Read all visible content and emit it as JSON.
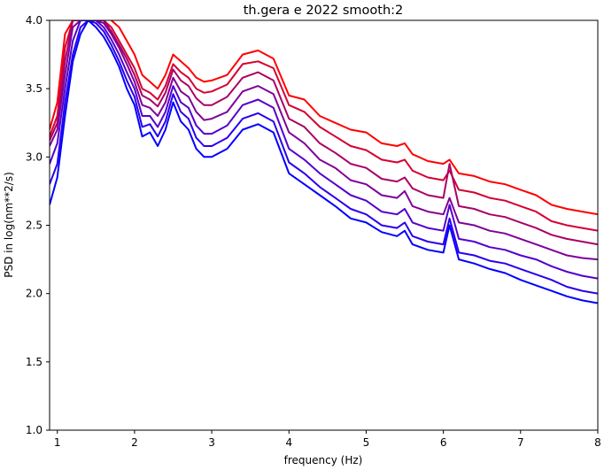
{
  "chart_data": {
    "type": "line",
    "title": "th.gera e 2022 smooth:2",
    "xlabel": "frequency (Hz)",
    "ylabel": "PSD in log(nm**2/s)",
    "xlim": [
      0.9,
      8
    ],
    "ylim": [
      1.0,
      4.0
    ],
    "xticks": [
      1,
      2,
      3,
      4,
      5,
      6,
      7,
      8
    ],
    "yticks": [
      1.0,
      1.5,
      2.0,
      2.5,
      3.0,
      3.5,
      4.0
    ],
    "x_tick_labels": [
      "1",
      "2",
      "3",
      "4",
      "5",
      "6",
      "7",
      "8"
    ],
    "y_tick_labels": [
      "1.0",
      "1.5",
      "2.0",
      "2.5",
      "3.0",
      "3.5",
      "4.0"
    ],
    "grid": false,
    "legend": "none",
    "series": [
      {
        "color": "#ff0000",
        "x": [
          0.9,
          1.0,
          1.1,
          1.2,
          1.3,
          1.4,
          1.5,
          1.6,
          1.7,
          1.8,
          1.9,
          2.0,
          2.1,
          2.2,
          2.3,
          2.4,
          2.5,
          2.6,
          2.7,
          2.8,
          2.9,
          3.0,
          3.2,
          3.4,
          3.6,
          3.8,
          4.0,
          4.2,
          4.4,
          4.6,
          4.8,
          5.0,
          5.2,
          5.4,
          5.5,
          5.6,
          5.8,
          6.0,
          6.08,
          6.2,
          6.4,
          6.6,
          6.8,
          7.0,
          7.2,
          7.4,
          7.6,
          7.8,
          8.0
        ],
        "y": [
          3.2,
          3.4,
          3.9,
          4.0,
          4.0,
          4.0,
          4.05,
          4.05,
          4.0,
          3.95,
          3.85,
          3.75,
          3.6,
          3.55,
          3.5,
          3.6,
          3.75,
          3.7,
          3.65,
          3.58,
          3.55,
          3.56,
          3.6,
          3.75,
          3.78,
          3.72,
          3.45,
          3.42,
          3.3,
          3.25,
          3.2,
          3.18,
          3.1,
          3.08,
          3.1,
          3.02,
          2.97,
          2.95,
          2.98,
          2.88,
          2.86,
          2.82,
          2.8,
          2.76,
          2.72,
          2.65,
          2.62,
          2.6,
          2.58
        ]
      },
      {
        "color": "#d40033",
        "x": [
          0.9,
          1.0,
          1.1,
          1.2,
          1.3,
          1.4,
          1.5,
          1.6,
          1.7,
          1.8,
          1.9,
          2.0,
          2.1,
          2.2,
          2.3,
          2.4,
          2.5,
          2.6,
          2.7,
          2.8,
          2.9,
          3.0,
          3.2,
          3.4,
          3.6,
          3.8,
          4.0,
          4.2,
          4.4,
          4.6,
          4.8,
          5.0,
          5.2,
          5.4,
          5.5,
          5.6,
          5.8,
          6.0,
          6.08,
          6.2,
          6.4,
          6.6,
          6.8,
          7.0,
          7.2,
          7.4,
          7.6,
          7.8,
          8.0
        ],
        "y": [
          3.15,
          3.3,
          3.8,
          4.0,
          4.0,
          4.0,
          4.0,
          4.0,
          3.95,
          3.85,
          3.75,
          3.65,
          3.5,
          3.47,
          3.42,
          3.52,
          3.68,
          3.62,
          3.58,
          3.5,
          3.47,
          3.48,
          3.53,
          3.68,
          3.7,
          3.65,
          3.38,
          3.33,
          3.22,
          3.15,
          3.08,
          3.05,
          2.98,
          2.96,
          2.98,
          2.9,
          2.85,
          2.83,
          2.9,
          2.76,
          2.74,
          2.7,
          2.68,
          2.64,
          2.6,
          2.53,
          2.5,
          2.48,
          2.46
        ]
      },
      {
        "color": "#aa0066",
        "x": [
          0.9,
          1.0,
          1.1,
          1.2,
          1.3,
          1.4,
          1.5,
          1.6,
          1.7,
          1.8,
          1.9,
          2.0,
          2.1,
          2.2,
          2.3,
          2.4,
          2.5,
          2.6,
          2.7,
          2.8,
          2.9,
          3.0,
          3.2,
          3.4,
          3.6,
          3.8,
          4.0,
          4.2,
          4.4,
          4.6,
          4.8,
          5.0,
          5.2,
          5.4,
          5.5,
          5.6,
          5.8,
          6.0,
          6.08,
          6.2,
          6.4,
          6.6,
          6.8,
          7.0,
          7.2,
          7.4,
          7.6,
          7.8,
          8.0
        ],
        "y": [
          3.12,
          3.25,
          3.7,
          4.0,
          4.0,
          4.0,
          4.0,
          4.0,
          3.92,
          3.82,
          3.72,
          3.6,
          3.45,
          3.42,
          3.37,
          3.47,
          3.64,
          3.56,
          3.52,
          3.43,
          3.38,
          3.38,
          3.44,
          3.58,
          3.62,
          3.56,
          3.28,
          3.22,
          3.1,
          3.03,
          2.95,
          2.92,
          2.84,
          2.82,
          2.85,
          2.77,
          2.72,
          2.7,
          2.95,
          2.64,
          2.62,
          2.58,
          2.56,
          2.52,
          2.48,
          2.43,
          2.4,
          2.38,
          2.36
        ]
      },
      {
        "color": "#7f0099",
        "x": [
          0.9,
          1.0,
          1.1,
          1.2,
          1.3,
          1.4,
          1.5,
          1.6,
          1.7,
          1.8,
          1.9,
          2.0,
          2.1,
          2.2,
          2.3,
          2.4,
          2.5,
          2.6,
          2.7,
          2.8,
          2.9,
          3.0,
          3.2,
          3.4,
          3.6,
          3.8,
          4.0,
          4.2,
          4.4,
          4.6,
          4.8,
          5.0,
          5.2,
          5.4,
          5.5,
          5.6,
          5.8,
          6.0,
          6.08,
          6.2,
          6.4,
          6.6,
          6.8,
          7.0,
          7.2,
          7.4,
          7.6,
          7.8,
          8.0
        ],
        "y": [
          3.08,
          3.2,
          3.6,
          3.95,
          4.0,
          4.0,
          4.0,
          3.98,
          3.9,
          3.8,
          3.68,
          3.55,
          3.38,
          3.36,
          3.3,
          3.4,
          3.58,
          3.48,
          3.44,
          3.33,
          3.27,
          3.28,
          3.33,
          3.48,
          3.52,
          3.46,
          3.18,
          3.1,
          2.98,
          2.92,
          2.83,
          2.8,
          2.72,
          2.7,
          2.75,
          2.64,
          2.6,
          2.58,
          2.7,
          2.52,
          2.5,
          2.46,
          2.44,
          2.4,
          2.36,
          2.32,
          2.28,
          2.26,
          2.25
        ]
      },
      {
        "color": "#5400cc",
        "x": [
          0.9,
          1.0,
          1.1,
          1.2,
          1.3,
          1.4,
          1.5,
          1.6,
          1.7,
          1.8,
          1.9,
          2.0,
          2.1,
          2.2,
          2.3,
          2.4,
          2.5,
          2.6,
          2.7,
          2.8,
          2.9,
          3.0,
          3.2,
          3.4,
          3.6,
          3.8,
          4.0,
          4.2,
          4.4,
          4.6,
          4.8,
          5.0,
          5.2,
          5.4,
          5.5,
          5.6,
          5.8,
          6.0,
          6.08,
          6.2,
          6.4,
          6.6,
          6.8,
          7.0,
          7.2,
          7.4,
          7.6,
          7.8,
          8.0
        ],
        "y": [
          2.95,
          3.1,
          3.5,
          3.85,
          4.0,
          4.0,
          4.0,
          3.95,
          3.86,
          3.75,
          3.62,
          3.5,
          3.3,
          3.3,
          3.22,
          3.33,
          3.52,
          3.4,
          3.36,
          3.23,
          3.17,
          3.17,
          3.23,
          3.38,
          3.42,
          3.36,
          3.06,
          2.98,
          2.88,
          2.8,
          2.72,
          2.68,
          2.6,
          2.58,
          2.62,
          2.52,
          2.48,
          2.46,
          2.65,
          2.4,
          2.38,
          2.34,
          2.32,
          2.28,
          2.25,
          2.2,
          2.16,
          2.13,
          2.11
        ]
      },
      {
        "color": "#2900ee",
        "x": [
          0.9,
          1.0,
          1.1,
          1.2,
          1.3,
          1.4,
          1.5,
          1.6,
          1.7,
          1.8,
          1.9,
          2.0,
          2.1,
          2.2,
          2.3,
          2.4,
          2.5,
          2.6,
          2.7,
          2.8,
          2.9,
          3.0,
          3.2,
          3.4,
          3.6,
          3.8,
          4.0,
          4.2,
          4.4,
          4.6,
          4.8,
          5.0,
          5.2,
          5.4,
          5.5,
          5.6,
          5.8,
          6.0,
          6.08,
          6.2,
          6.4,
          6.6,
          6.8,
          7.0,
          7.2,
          7.4,
          7.6,
          7.8,
          8.0
        ],
        "y": [
          2.8,
          2.95,
          3.4,
          3.75,
          3.95,
          4.0,
          3.98,
          3.92,
          3.82,
          3.7,
          3.56,
          3.44,
          3.22,
          3.24,
          3.15,
          3.26,
          3.46,
          3.33,
          3.28,
          3.14,
          3.08,
          3.08,
          3.14,
          3.28,
          3.32,
          3.26,
          2.96,
          2.88,
          2.78,
          2.7,
          2.62,
          2.58,
          2.5,
          2.48,
          2.52,
          2.42,
          2.38,
          2.36,
          2.55,
          2.3,
          2.28,
          2.24,
          2.22,
          2.18,
          2.14,
          2.1,
          2.05,
          2.02,
          2.0
        ]
      },
      {
        "color": "#0000ff",
        "x": [
          0.9,
          1.0,
          1.1,
          1.2,
          1.3,
          1.4,
          1.5,
          1.6,
          1.7,
          1.8,
          1.9,
          2.0,
          2.1,
          2.2,
          2.3,
          2.4,
          2.5,
          2.6,
          2.7,
          2.8,
          2.9,
          3.0,
          3.2,
          3.4,
          3.6,
          3.8,
          4.0,
          4.2,
          4.4,
          4.6,
          4.8,
          5.0,
          5.2,
          5.4,
          5.5,
          5.6,
          5.8,
          6.0,
          6.08,
          6.2,
          6.4,
          6.6,
          6.8,
          7.0,
          7.2,
          7.4,
          7.6,
          7.8,
          8.0
        ],
        "y": [
          2.65,
          2.85,
          3.3,
          3.7,
          3.9,
          4.0,
          3.95,
          3.88,
          3.78,
          3.66,
          3.5,
          3.38,
          3.15,
          3.18,
          3.08,
          3.2,
          3.4,
          3.26,
          3.2,
          3.06,
          3.0,
          3.0,
          3.06,
          3.2,
          3.24,
          3.18,
          2.88,
          2.8,
          2.72,
          2.64,
          2.55,
          2.52,
          2.45,
          2.42,
          2.46,
          2.36,
          2.32,
          2.3,
          2.5,
          2.25,
          2.22,
          2.18,
          2.15,
          2.1,
          2.06,
          2.02,
          1.98,
          1.95,
          1.93
        ]
      }
    ]
  }
}
